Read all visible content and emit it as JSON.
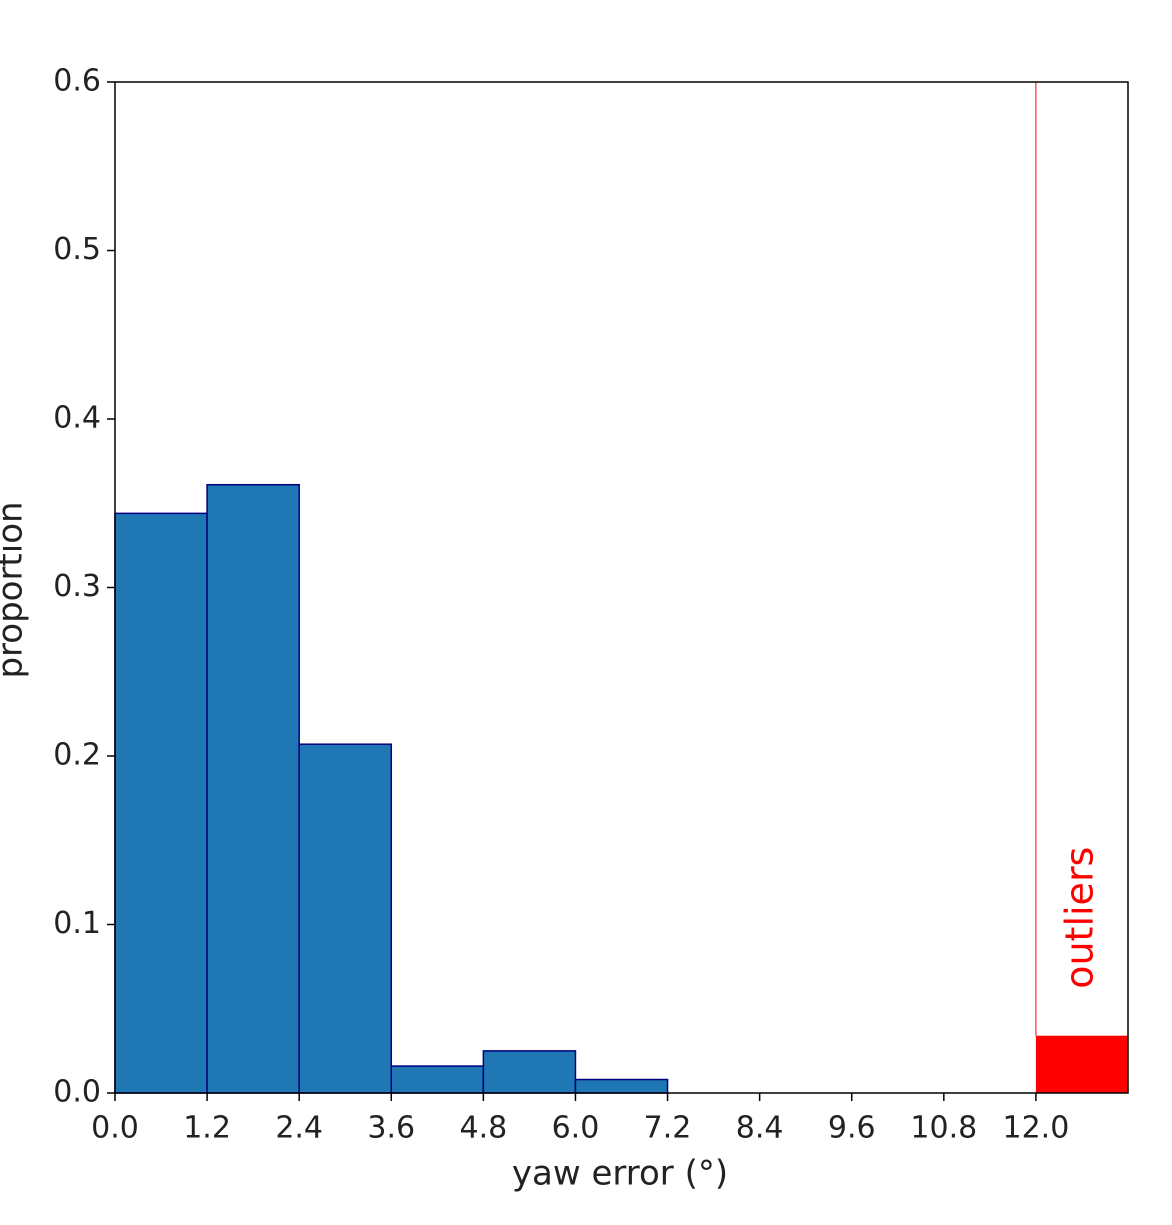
{
  "chart_data": {
    "type": "histogram",
    "xlabel": "yaw error (°)",
    "ylabel": "proportion",
    "bins": [
      0,
      1.2,
      2.4,
      3.6,
      4.8,
      6.0,
      7.2,
      8.4,
      9.6,
      10.8,
      12.0
    ],
    "values": [
      0.344,
      0.361,
      0.207,
      0.016,
      0.025,
      0.008,
      0,
      0,
      0,
      0
    ],
    "color": "#1f77b4",
    "edgecolor": "#000080",
    "outliers": {
      "label": "outliers",
      "bin": [
        12.0,
        13.2
      ],
      "value": 0.034,
      "color": "#ff0000"
    },
    "xlim": [
      0,
      13.2
    ],
    "ylim": [
      0,
      0.6
    ],
    "xticks": [
      {
        "value": 0,
        "label": "0.0"
      },
      1.2,
      2.4,
      3.6,
      4.8,
      {
        "value": 6,
        "label": "6.0"
      },
      7.2,
      8.4,
      9.6,
      10.8,
      {
        "value": 12,
        "label": "12.0"
      }
    ],
    "yticks": [
      {
        "value": 0,
        "label": "0.0"
      },
      0.1,
      0.2,
      0.3,
      0.4,
      0.5,
      0.6
    ]
  }
}
